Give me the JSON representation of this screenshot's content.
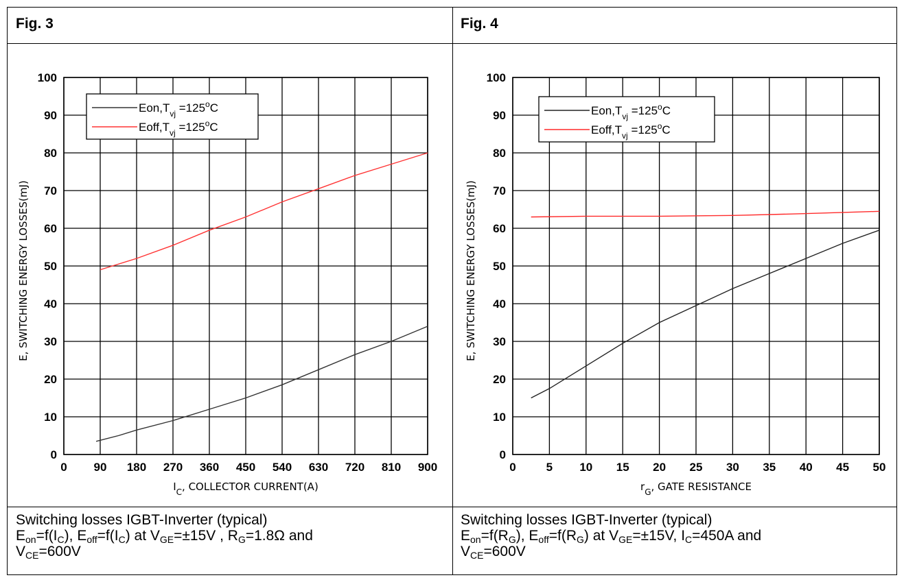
{
  "panels": [
    {
      "label": "Fig. 3",
      "caption": {
        "line1": "Switching losses IGBT-Inverter (typical)",
        "line2": [
          {
            "t": "E"
          },
          {
            "s": "on"
          },
          {
            "t": "=f(I"
          },
          {
            "s": "C"
          },
          {
            "t": "), E"
          },
          {
            "s": "off"
          },
          {
            "t": "=f(I"
          },
          {
            "s": "C"
          },
          {
            "t": ") at V"
          },
          {
            "s": "GE"
          },
          {
            "t": "=±15V , R"
          },
          {
            "s": "G"
          },
          {
            "t": "=1.8Ω and"
          }
        ],
        "line3": [
          {
            "t": "V"
          },
          {
            "s": "CE"
          },
          {
            "t": "=600V"
          }
        ]
      }
    },
    {
      "label": "Fig. 4",
      "caption": {
        "line1": "Switching losses IGBT-Inverter (typical)",
        "line2": [
          {
            "t": "E"
          },
          {
            "s": "on"
          },
          {
            "t": "=f(R"
          },
          {
            "s": "G"
          },
          {
            "t": "), E"
          },
          {
            "s": "off"
          },
          {
            "t": "=f(R"
          },
          {
            "s": "G"
          },
          {
            "t": ") at V"
          },
          {
            "s": "GE"
          },
          {
            "t": "=±15V, I"
          },
          {
            "s": "C"
          },
          {
            "t": "=450A and"
          }
        ],
        "line3": [
          {
            "t": "V"
          },
          {
            "s": "CE"
          },
          {
            "t": "=600V"
          }
        ]
      }
    }
  ],
  "chart_data": [
    {
      "type": "line",
      "xlabel": "I_C, COLLECTOR CURRENT(A)",
      "xlabel_parts": [
        {
          "t": "I"
        },
        {
          "s": "C"
        },
        {
          "t": ", COLLECTOR CURRENT(A)"
        }
      ],
      "ylabel": "E, SWITCHING ENERGY LOSSES(mJ)",
      "xlim": [
        0,
        900
      ],
      "ylim": [
        0,
        100
      ],
      "xticks": [
        0,
        90,
        180,
        270,
        360,
        450,
        540,
        630,
        720,
        810,
        900
      ],
      "yticks": [
        0,
        10,
        20,
        30,
        40,
        50,
        60,
        70,
        80,
        90,
        100
      ],
      "grid": true,
      "legend_position": "top-left",
      "series": [
        {
          "name": "Eon,Tvj=125°C",
          "legend_parts": [
            {
              "t": "Eon,T"
            },
            {
              "s": "vj"
            },
            {
              "t": " =125"
            },
            {
              "p": "o"
            },
            {
              "t": "C"
            }
          ],
          "color": "#333333",
          "x": [
            80,
            135,
            180,
            270,
            360,
            450,
            540,
            630,
            720,
            810,
            900
          ],
          "y": [
            3.5,
            5,
            6.5,
            9,
            12,
            15,
            18.5,
            22.5,
            26.5,
            30,
            34
          ]
        },
        {
          "name": "Eoff,Tvj=125°C",
          "legend_parts": [
            {
              "t": "Eoff,T"
            },
            {
              "s": "vj"
            },
            {
              "t": " =125"
            },
            {
              "p": "o"
            },
            {
              "t": "C"
            }
          ],
          "color": "#ff3333",
          "x": [
            90,
            120,
            180,
            270,
            360,
            450,
            540,
            630,
            720,
            810,
            900
          ],
          "y": [
            49,
            50,
            52,
            55.5,
            59.5,
            63,
            67,
            70.5,
            74,
            77,
            80
          ]
        }
      ]
    },
    {
      "type": "line",
      "xlabel": "r_G, GATE RESISTANCE",
      "xlabel_parts": [
        {
          "t": "r"
        },
        {
          "s": "G"
        },
        {
          "t": ", GATE RESISTANCE"
        }
      ],
      "ylabel": "E, SWITCHING ENERGY LOSSES(mJ)",
      "xlim": [
        0,
        50
      ],
      "ylim": [
        0,
        100
      ],
      "xticks": [
        0,
        5,
        10,
        15,
        20,
        25,
        30,
        35,
        40,
        45,
        50
      ],
      "yticks": [
        0,
        10,
        20,
        30,
        40,
        50,
        60,
        70,
        80,
        90,
        100
      ],
      "grid": true,
      "legend_position": "top-left",
      "series": [
        {
          "name": "Eon,Tvj=125°C",
          "legend_parts": [
            {
              "t": "Eon,T"
            },
            {
              "s": "vj"
            },
            {
              "t": " =125"
            },
            {
              "p": "o"
            },
            {
              "t": "C"
            }
          ],
          "color": "#222222",
          "x": [
            2.5,
            5,
            10,
            15,
            20,
            25,
            30,
            35,
            40,
            45,
            50
          ],
          "y": [
            15,
            17.5,
            23.5,
            29.5,
            35,
            39.5,
            44,
            48,
            52,
            56,
            59.5
          ]
        },
        {
          "name": "Eoff,Tvj=125°C",
          "legend_parts": [
            {
              "t": "Eoff,T"
            },
            {
              "s": "vj"
            },
            {
              "t": " =125"
            },
            {
              "p": "o"
            },
            {
              "t": "C"
            }
          ],
          "color": "#ff2a2a",
          "x": [
            2.5,
            10,
            20,
            30,
            40,
            50
          ],
          "y": [
            63,
            63.2,
            63.2,
            63.4,
            63.9,
            64.5
          ]
        }
      ]
    }
  ]
}
